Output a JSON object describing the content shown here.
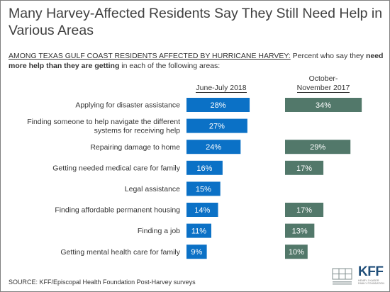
{
  "title": "Many Harvey-Affected Residents Say They Still Need Help in Various Areas",
  "subtitle": {
    "lead": "AMONG TEXAS GULF COAST RESIDENTS AFFECTED BY HURRICANE HARVEY:",
    "mid": " Percent who say they ",
    "bold": "need more help than they are getting",
    "tail": " in each of the following areas:"
  },
  "source": "SOURCE: KFF/Episcopal Health Foundation Post-Harvey surveys",
  "logos": {
    "left_text": "EPISCOPAL HEALTH FOUNDATION",
    "kff": "KFF",
    "kff_sub": "HENRY J KAISER FAMILY FOUNDATION"
  },
  "colors": {
    "series1": "#0b71c6",
    "series2": "#52786a",
    "text": "#333333"
  },
  "chart_data": {
    "type": "bar",
    "orientation": "horizontal",
    "categories": [
      "Applying for disaster assistance",
      "Finding someone to help navigate the different systems for receiving help",
      "Repairing damage to home",
      "Getting needed medical care for family",
      "Legal assistance",
      "Finding affordable permanent housing",
      "Finding a job",
      "Getting mental health care for family"
    ],
    "category_lines": [
      [
        "Applying for disaster assistance"
      ],
      [
        "Finding someone to help navigate the different",
        "systems for receiving help"
      ],
      [
        "Repairing damage to home"
      ],
      [
        "Getting needed medical care for family"
      ],
      [
        "Legal assistance"
      ],
      [
        "Finding affordable permanent housing"
      ],
      [
        "Finding a job"
      ],
      [
        "Getting mental health care for family"
      ]
    ],
    "series": [
      {
        "name": "June-July 2018",
        "values": [
          28,
          27,
          24,
          16,
          15,
          14,
          11,
          9
        ],
        "labels": [
          "28%",
          "27%",
          "24%",
          "16%",
          "15%",
          "14%",
          "11%",
          "9%"
        ],
        "color": "#0b71c6"
      },
      {
        "name": "October-November 2017",
        "name_lines": [
          "October-",
          "November 2017"
        ],
        "values": [
          34,
          null,
          29,
          17,
          null,
          17,
          13,
          10
        ],
        "labels": [
          "34%",
          "",
          "29%",
          "17%",
          "",
          "17%",
          "13%",
          "10%"
        ],
        "color": "#52786a"
      }
    ]
  }
}
